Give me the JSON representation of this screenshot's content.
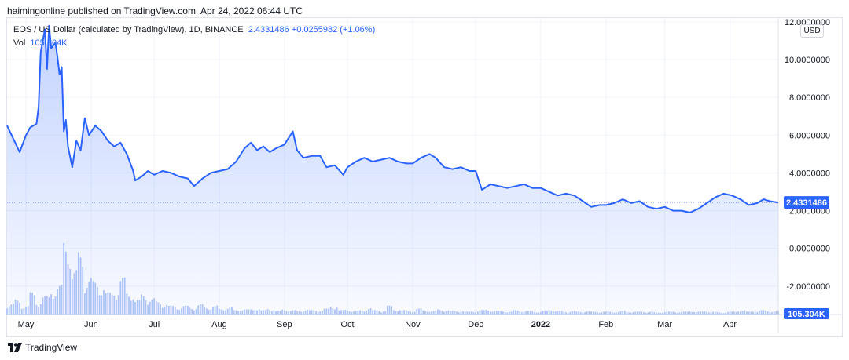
{
  "header": {
    "published_line": "haimingonline published on TradingView.com, Apr 24, 2022 06:44 UTC"
  },
  "legend": {
    "pair": "EOS / US Dollar (calculated by TradingView), 1D, BINANCE",
    "last": "2.4331486",
    "change": "+0.0255982 (+1.06%)",
    "vol_label": "Vol",
    "vol_value": "105.304K"
  },
  "currency_button": "USD",
  "footer": {
    "brand": "TradingView"
  },
  "colors": {
    "line": "#2962ff",
    "fill": "#e3ebff",
    "volume": "#b3c7f7",
    "badge": "#2962ff",
    "grid": "#f0f3fa"
  },
  "chart_data": {
    "type": "area",
    "title": "EOS / US Dollar (calculated by TradingView), 1D, BINANCE",
    "currency": "USD",
    "y_ticks": [
      "12.0000000",
      "10.0000000",
      "8.0000000",
      "6.0000000",
      "4.0000000",
      "2.0000000",
      "0.0000000",
      "-2.0000000"
    ],
    "y_tick_values": [
      12,
      10,
      8,
      6,
      4,
      2,
      0,
      -2
    ],
    "ylim": [
      -3.5,
      12.2
    ],
    "x_ticks": [
      "May",
      "Jun",
      "Jul",
      "Aug",
      "Sep",
      "Oct",
      "Nov",
      "Dec",
      "2022",
      "Feb",
      "Mar",
      "Apr"
    ],
    "x_tick_dates": [
      "2021-05-01",
      "2021-06-01",
      "2021-07-01",
      "2021-08-01",
      "2021-09-01",
      "2021-10-01",
      "2021-11-01",
      "2021-12-01",
      "2022-01-01",
      "2022-02-01",
      "2022-03-01",
      "2022-04-01"
    ],
    "xlim": [
      "2021-04-22",
      "2022-04-24"
    ],
    "last_price": 2.4331486,
    "last_price_label": "2.4331486",
    "volume_label": "105.304K",
    "series": [
      {
        "name": "EOS / US Dollar",
        "points": [
          [
            "2021-04-22",
            6.5
          ],
          [
            "2021-04-25",
            5.8
          ],
          [
            "2021-04-28",
            5.1
          ],
          [
            "2021-05-01",
            6.0
          ],
          [
            "2021-05-03",
            6.4
          ],
          [
            "2021-05-06",
            6.6
          ],
          [
            "2021-05-07",
            7.5
          ],
          [
            "2021-05-08",
            10.4
          ],
          [
            "2021-05-10",
            11.6
          ],
          [
            "2021-05-11",
            9.5
          ],
          [
            "2021-05-12",
            11.8
          ],
          [
            "2021-05-13",
            10.6
          ],
          [
            "2021-05-15",
            10.9
          ],
          [
            "2021-05-16",
            10.1
          ],
          [
            "2021-05-17",
            9.2
          ],
          [
            "2021-05-18",
            9.6
          ],
          [
            "2021-05-19",
            6.2
          ],
          [
            "2021-05-20",
            6.8
          ],
          [
            "2021-05-21",
            5.4
          ],
          [
            "2021-05-23",
            4.3
          ],
          [
            "2021-05-25",
            5.7
          ],
          [
            "2021-05-27",
            5.2
          ],
          [
            "2021-05-29",
            6.9
          ],
          [
            "2021-05-31",
            6.0
          ],
          [
            "2021-06-03",
            6.5
          ],
          [
            "2021-06-06",
            6.2
          ],
          [
            "2021-06-09",
            5.7
          ],
          [
            "2021-06-12",
            5.4
          ],
          [
            "2021-06-15",
            5.6
          ],
          [
            "2021-06-18",
            5.0
          ],
          [
            "2021-06-21",
            4.1
          ],
          [
            "2021-06-22",
            3.6
          ],
          [
            "2021-06-25",
            3.8
          ],
          [
            "2021-06-28",
            4.1
          ],
          [
            "2021-07-01",
            3.9
          ],
          [
            "2021-07-05",
            4.1
          ],
          [
            "2021-07-09",
            4.0
          ],
          [
            "2021-07-13",
            3.8
          ],
          [
            "2021-07-17",
            3.7
          ],
          [
            "2021-07-20",
            3.3
          ],
          [
            "2021-07-24",
            3.7
          ],
          [
            "2021-07-28",
            4.0
          ],
          [
            "2021-08-01",
            4.1
          ],
          [
            "2021-08-05",
            4.2
          ],
          [
            "2021-08-09",
            4.6
          ],
          [
            "2021-08-13",
            5.3
          ],
          [
            "2021-08-16",
            5.6
          ],
          [
            "2021-08-19",
            5.2
          ],
          [
            "2021-08-22",
            5.4
          ],
          [
            "2021-08-25",
            5.1
          ],
          [
            "2021-08-28",
            5.3
          ],
          [
            "2021-09-01",
            5.5
          ],
          [
            "2021-09-05",
            6.2
          ],
          [
            "2021-09-07",
            5.2
          ],
          [
            "2021-09-10",
            4.8
          ],
          [
            "2021-09-14",
            4.9
          ],
          [
            "2021-09-18",
            4.9
          ],
          [
            "2021-09-21",
            4.3
          ],
          [
            "2021-09-25",
            4.4
          ],
          [
            "2021-09-29",
            3.9
          ],
          [
            "2021-10-01",
            4.3
          ],
          [
            "2021-10-05",
            4.6
          ],
          [
            "2021-10-09",
            4.8
          ],
          [
            "2021-10-13",
            4.6
          ],
          [
            "2021-10-17",
            4.7
          ],
          [
            "2021-10-21",
            4.8
          ],
          [
            "2021-10-25",
            4.6
          ],
          [
            "2021-10-29",
            4.5
          ],
          [
            "2021-11-01",
            4.5
          ],
          [
            "2021-11-05",
            4.8
          ],
          [
            "2021-11-09",
            5.0
          ],
          [
            "2021-11-12",
            4.8
          ],
          [
            "2021-11-16",
            4.3
          ],
          [
            "2021-11-20",
            4.2
          ],
          [
            "2021-11-24",
            4.3
          ],
          [
            "2021-11-28",
            4.1
          ],
          [
            "2021-12-01",
            4.1
          ],
          [
            "2021-12-04",
            3.1
          ],
          [
            "2021-12-08",
            3.4
          ],
          [
            "2021-12-12",
            3.3
          ],
          [
            "2021-12-16",
            3.2
          ],
          [
            "2021-12-20",
            3.3
          ],
          [
            "2021-12-24",
            3.4
          ],
          [
            "2021-12-28",
            3.2
          ],
          [
            "2022-01-01",
            3.2
          ],
          [
            "2022-01-05",
            3.0
          ],
          [
            "2022-01-09",
            2.8
          ],
          [
            "2022-01-13",
            2.9
          ],
          [
            "2022-01-17",
            2.8
          ],
          [
            "2022-01-21",
            2.5
          ],
          [
            "2022-01-25",
            2.2
          ],
          [
            "2022-01-29",
            2.3
          ],
          [
            "2022-02-01",
            2.3
          ],
          [
            "2022-02-05",
            2.4
          ],
          [
            "2022-02-09",
            2.6
          ],
          [
            "2022-02-13",
            2.4
          ],
          [
            "2022-02-17",
            2.5
          ],
          [
            "2022-02-21",
            2.2
          ],
          [
            "2022-02-25",
            2.1
          ],
          [
            "2022-03-01",
            2.2
          ],
          [
            "2022-03-05",
            2.0
          ],
          [
            "2022-03-09",
            2.0
          ],
          [
            "2022-03-13",
            1.9
          ],
          [
            "2022-03-17",
            2.1
          ],
          [
            "2022-03-21",
            2.4
          ],
          [
            "2022-03-25",
            2.7
          ],
          [
            "2022-03-29",
            2.9
          ],
          [
            "2022-04-02",
            2.8
          ],
          [
            "2022-04-06",
            2.6
          ],
          [
            "2022-04-10",
            2.3
          ],
          [
            "2022-04-14",
            2.4
          ],
          [
            "2022-04-17",
            2.6
          ],
          [
            "2022-04-20",
            2.5
          ],
          [
            "2022-04-24",
            2.43
          ]
        ]
      }
    ],
    "volume": {
      "name": "Vol",
      "relative": [
        0.15,
        0.2,
        0.12,
        0.3,
        0.18,
        0.25,
        0.35,
        0.4,
        1.0,
        0.6,
        0.85,
        0.5,
        0.45,
        0.4,
        0.3,
        0.35,
        0.5,
        0.3,
        0.2,
        0.28,
        0.22,
        0.18,
        0.15,
        0.12,
        0.1,
        0.12,
        0.1,
        0.14,
        0.1,
        0.12,
        0.08,
        0.1,
        0.06,
        0.08,
        0.07,
        0.09,
        0.06,
        0.08,
        0.05,
        0.07,
        0.06,
        0.05,
        0.07,
        0.06,
        0.06,
        0.08,
        0.12,
        0.06,
        0.07,
        0.05,
        0.06,
        0.09,
        0.06,
        0.05,
        0.12,
        0.07,
        0.06,
        0.05,
        0.08,
        0.06,
        0.05,
        0.07,
        0.06,
        0.05,
        0.05,
        0.04,
        0.05,
        0.06,
        0.07,
        0.05,
        0.05,
        0.04,
        0.06,
        0.05,
        0.05,
        0.04,
        0.05,
        0.07,
        0.05,
        0.04,
        0.05,
        0.04,
        0.05,
        0.04,
        0.04,
        0.04,
        0.04,
        0.05,
        0.04,
        0.04,
        0.04,
        0.04,
        0.03,
        0.04,
        0.04,
        0.04,
        0.04,
        0.05,
        0.04,
        0.05,
        0.04,
        0.03,
        0.04,
        0.04,
        0.06,
        0.04,
        0.05,
        0.06,
        0.05,
        0.05
      ]
    },
    "grid": true,
    "legend_position": "top-left"
  }
}
